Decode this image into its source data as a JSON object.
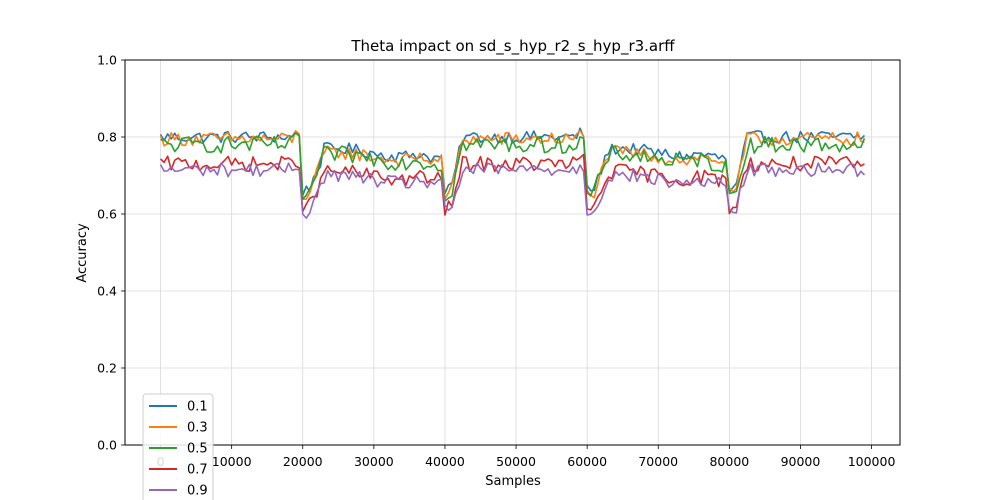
{
  "chart_data": {
    "type": "line",
    "title": "Theta impact on sd_s_hyp_r2_s_hyp_r3.arff",
    "xlabel": "Samples",
    "ylabel": "Accuracy",
    "xlim": [
      -5000,
      104000
    ],
    "ylim": [
      0.0,
      1.0
    ],
    "xticks": [
      0,
      10000,
      20000,
      30000,
      40000,
      50000,
      60000,
      70000,
      80000,
      90000,
      100000
    ],
    "xtick_labels": [
      "0",
      "10000",
      "20000",
      "30000",
      "40000",
      "50000",
      "60000",
      "70000",
      "80000",
      "90000",
      "100000"
    ],
    "yticks": [
      0.0,
      0.2,
      0.4,
      0.6,
      0.8,
      1.0
    ],
    "ytick_labels": [
      "0.0",
      "0.2",
      "0.4",
      "0.6",
      "0.8",
      "1.0"
    ],
    "grid": true,
    "legend_position": "lower-left",
    "x_start": 0,
    "x_step": 500,
    "n_points": 199,
    "series": [
      {
        "name": "0.1",
        "color": "#1f77b4",
        "plateau": 0.8,
        "low": 0.76,
        "dip": 0.66,
        "trough": 0.74,
        "amp": 0.016
      },
      {
        "name": "0.3",
        "color": "#ff7f0e",
        "plateau": 0.795,
        "low": 0.75,
        "dip": 0.65,
        "trough": 0.735,
        "amp": 0.018
      },
      {
        "name": "0.5",
        "color": "#2ca02c",
        "plateau": 0.78,
        "low": 0.745,
        "dip": 0.65,
        "trough": 0.72,
        "amp": 0.022
      },
      {
        "name": "0.7",
        "color": "#d62728",
        "plateau": 0.73,
        "low": 0.7,
        "dip": 0.615,
        "trough": 0.685,
        "amp": 0.02
      },
      {
        "name": "0.9",
        "color": "#9467bd",
        "plateau": 0.715,
        "low": 0.69,
        "dip": 0.605,
        "trough": 0.675,
        "amp": 0.018
      }
    ],
    "drift_points": [
      20000,
      40000,
      60000,
      80000
    ]
  }
}
